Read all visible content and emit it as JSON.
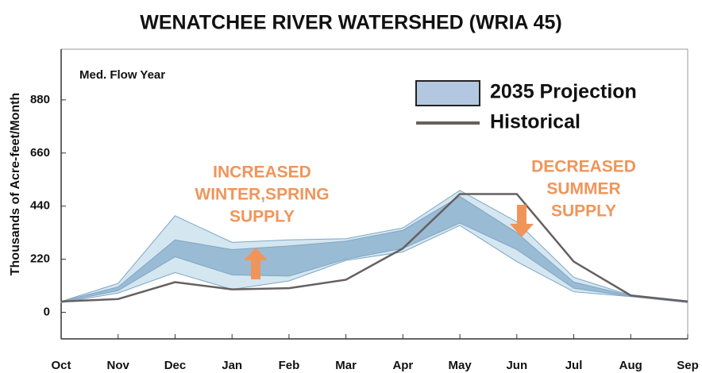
{
  "chart_data": {
    "type": "band_line",
    "title": "WENATCHEE RIVER WATERSHED (WRIA 45)",
    "y_label": "Thousands of Acre-feet/Month",
    "annotations": {
      "flow_year": "Med. Flow Year",
      "increase": [
        "INCREASED",
        "WINTER,SPRING",
        "SUPPLY"
      ],
      "decrease": [
        "DECREASED",
        "SUMMER",
        "SUPPLY"
      ]
    },
    "annotation_color": "#f0955a",
    "categories": [
      "Oct",
      "Nov",
      "Dec",
      "Jan",
      "Feb",
      "Mar",
      "Apr",
      "May",
      "Jun",
      "Jul",
      "Aug",
      "Sep"
    ],
    "series": [
      {
        "name": "2035 Projection",
        "color": "#b3c8e0",
        "outer_color": "#cfe3ee",
        "core_color": "#8fb3cf",
        "range_low": [
          40,
          80,
          165,
          95,
          130,
          215,
          250,
          360,
          210,
          85,
          65,
          40
        ],
        "range_high": [
          45,
          120,
          400,
          290,
          300,
          305,
          350,
          505,
          375,
          145,
          70,
          45
        ],
        "core_low": [
          42,
          90,
          230,
          155,
          150,
          220,
          265,
          370,
          260,
          100,
          66,
          42
        ],
        "core_high": [
          45,
          105,
          300,
          260,
          275,
          295,
          340,
          480,
          330,
          125,
          69,
          44
        ]
      },
      {
        "name": "Historical",
        "color": "#666060",
        "values": [
          45,
          55,
          125,
          95,
          100,
          135,
          265,
          490,
          490,
          210,
          70,
          45
        ]
      }
    ],
    "ylim": [
      -110,
      1090
    ],
    "yticks": [
      0,
      220,
      440,
      660,
      880
    ],
    "grid": false
  }
}
